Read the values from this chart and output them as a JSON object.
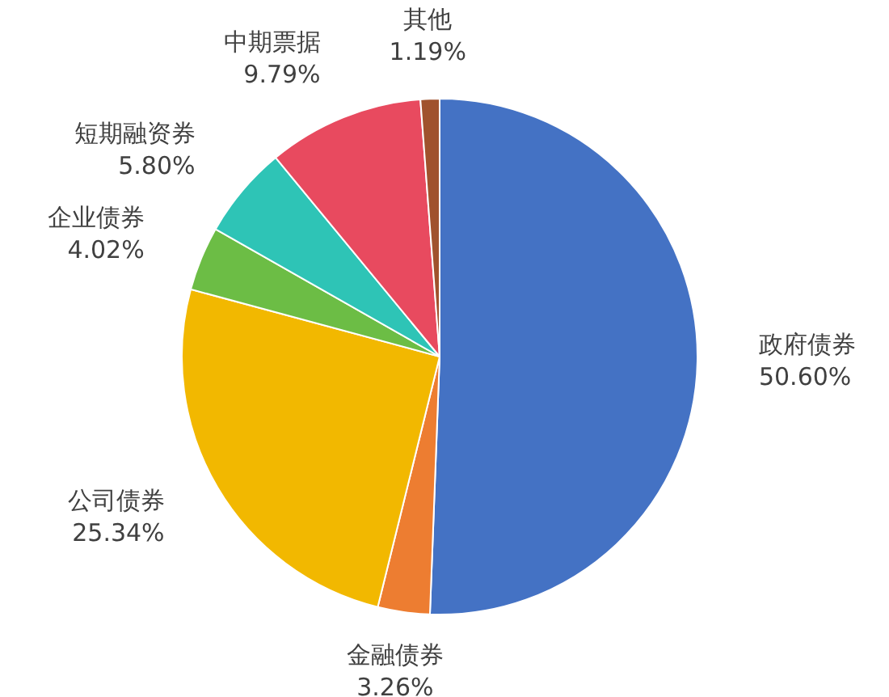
{
  "chart_data": {
    "type": "pie",
    "categories": [
      "政府债券",
      "金融债券",
      "公司债券",
      "企业债券",
      "短期融资券",
      "中期票据",
      "其他"
    ],
    "values": [
      50.6,
      3.26,
      25.34,
      4.02,
      5.8,
      9.79,
      1.19
    ],
    "colors": [
      "#4472c4",
      "#ed7d31",
      "#f2b800",
      "#6cbd45",
      "#2ec4b6",
      "#e84a5f",
      "#a0522d"
    ],
    "value_labels": [
      "50.60%",
      "3.26%",
      "25.34%",
      "4.02%",
      "5.80%",
      "9.79%",
      "1.19%"
    ],
    "legend": false
  }
}
